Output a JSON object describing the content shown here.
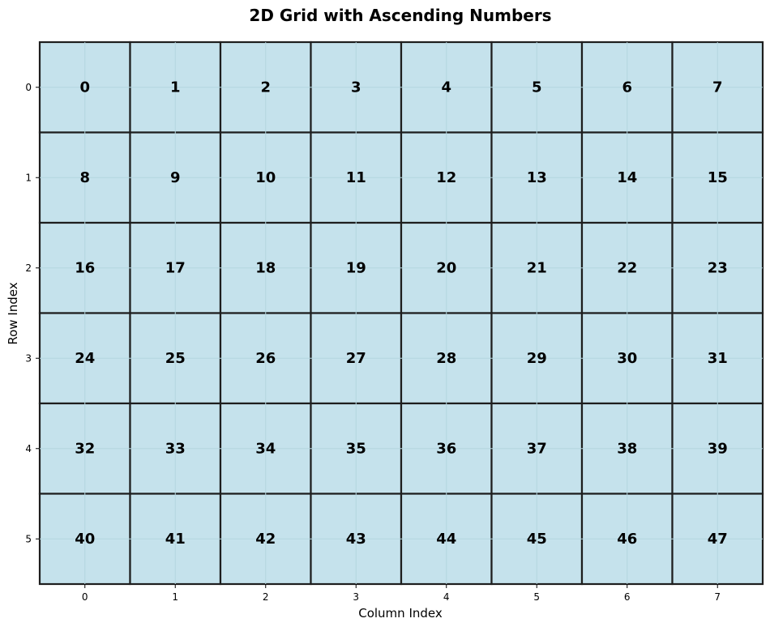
{
  "chart_data": {
    "type": "heatmap",
    "title": "2D Grid with Ascending Numbers",
    "xlabel": "Column Index",
    "ylabel": "Row Index",
    "x_ticks": [
      "0",
      "1",
      "2",
      "3",
      "4",
      "5",
      "6",
      "7"
    ],
    "y_ticks": [
      "0",
      "1",
      "2",
      "3",
      "4",
      "5"
    ],
    "values": [
      [
        0,
        1,
        2,
        3,
        4,
        5,
        6,
        7
      ],
      [
        8,
        9,
        10,
        11,
        12,
        13,
        14,
        15
      ],
      [
        16,
        17,
        18,
        19,
        20,
        21,
        22,
        23
      ],
      [
        24,
        25,
        26,
        27,
        28,
        29,
        30,
        31
      ],
      [
        32,
        33,
        34,
        35,
        36,
        37,
        38,
        39
      ],
      [
        40,
        41,
        42,
        43,
        44,
        45,
        46,
        47
      ]
    ],
    "grid": true,
    "colors": {
      "cell_fill": "#c5e2ec",
      "cell_border": "#1e1e1e",
      "grid_line": "#b3d6df",
      "text": "#000000"
    }
  }
}
